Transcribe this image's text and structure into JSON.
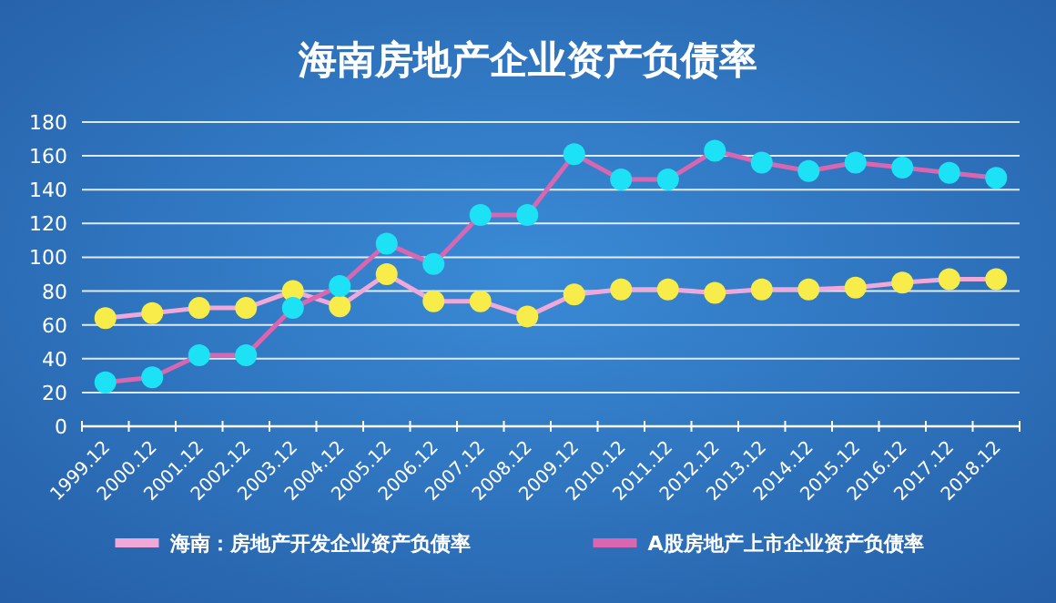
{
  "chart_data": {
    "type": "line",
    "title": "海南房地产企业资产负债率",
    "categories": [
      "1999.12",
      "2000.12",
      "2001.12",
      "2002.12",
      "2003.12",
      "2004.12",
      "2005.12",
      "2006.12",
      "2007.12",
      "2008.12",
      "2009.12",
      "2010.12",
      "2011.12",
      "2012.12",
      "2013.12",
      "2014.12",
      "2015.12",
      "2016.12",
      "2017.12",
      "2018.12"
    ],
    "series": [
      {
        "name": "海南：房地产开发企业资产负债率",
        "color": "#f0a8d8",
        "colors": [
          "#f7ec4a",
          "#f7ec4a",
          "#f7ec4a",
          "#f7ec4a",
          "#f7ec4a",
          "#f7ec4a",
          "#f7ec4a",
          "#f7ec4a",
          "#f7ec4a",
          "#f7ec4a",
          "#f7ec4a",
          "#f7ec4a",
          "#f7ec4a",
          "#f7ec4a",
          "#f7ec4a",
          "#f7ec4a",
          "#f7ec4a",
          "#f7ec4a",
          "#f7ec4a",
          "#f7ec4a"
        ],
        "values": [
          64,
          67,
          70,
          70,
          80,
          71,
          90,
          74,
          74,
          65,
          78,
          81,
          81,
          79,
          81,
          81,
          82,
          85,
          87,
          87
        ]
      },
      {
        "name": "A股房地产上市企业资产负债率",
        "color": "#d966b0",
        "colors": [
          "#1de2f5",
          "#1de2f5",
          "#1de2f5",
          "#1de2f5",
          "#1de2f5",
          "#1de2f5",
          "#1de2f5",
          "#1de2f5",
          "#1de2f5",
          "#1de2f5",
          "#1de2f5",
          "#1de2f5",
          "#1de2f5",
          "#1de2f5",
          "#1de2f5",
          "#1de2f5",
          "#1de2f5",
          "#1de2f5",
          "#1de2f5",
          "#1de2f5"
        ],
        "values": [
          26,
          29,
          42,
          42,
          70,
          83,
          108,
          96,
          125,
          125,
          161,
          146,
          146,
          163,
          156,
          151,
          156,
          153,
          150,
          147
        ]
      }
    ],
    "ylim": [
      0,
      180
    ],
    "yticks": [
      0,
      20,
      40,
      60,
      80,
      100,
      120,
      140,
      160,
      180
    ],
    "grid": "y",
    "legend": "bottom",
    "marker": "circle",
    "line_style": "solid"
  }
}
